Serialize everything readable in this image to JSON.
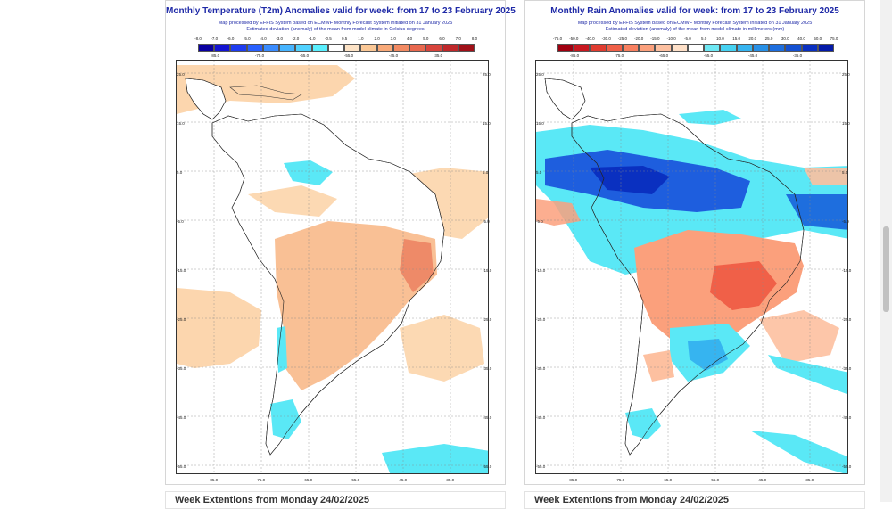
{
  "left_panel": {
    "title": "Monthly Temperature (T2m) Anomalies valid for week: from 17 to 23 February 2025",
    "subtitle1": "Map processed by EFFIS System based on ECMWF Monthly Forecast System initiated on 31 January 2025",
    "subtitle2": "Estimated deviation (anomaly) of the mean from model climate in Celsius degrees",
    "legend_ticks": [
      "-8.0",
      "-7.0",
      "-6.0",
      "-5.0",
      "-4.0",
      "-3.0",
      "-2.0",
      "-1.0",
      "-0.5",
      "0.5",
      "1.0",
      "2.0",
      "3.0",
      "4.0",
      "5.0",
      "6.0",
      "7.0",
      "8.0"
    ],
    "legend_colors": [
      "#0a00a0",
      "#1414d2",
      "#1e3cf0",
      "#2860ff",
      "#3a8cff",
      "#46b4ff",
      "#50d2ff",
      "#5af0ff",
      "#ffffff",
      "#fde3c6",
      "#fbc896",
      "#f8a978",
      "#f28a62",
      "#e8684e",
      "#d8443c",
      "#c0282a",
      "#a01018"
    ]
  },
  "right_panel": {
    "title": "Monthly Rain Anomalies valid for week: from 17 to 23 February 2025",
    "subtitle1": "Map processed by EFFIS System based on ECMWF Monthly Forecast System initiated on 31 January 2025",
    "subtitle2": "Estimated deviation (anomaly) of the mean from model climate in millimeters (mm)",
    "legend_ticks": [
      "-75.0",
      "-50.0",
      "-40.0",
      "-30.0",
      "-25.0",
      "-20.0",
      "-15.0",
      "-10.0",
      "-5.0",
      "5.0",
      "10.0",
      "15.0",
      "20.0",
      "25.0",
      "30.0",
      "40.0",
      "50.0",
      "75.0"
    ],
    "legend_colors": [
      "#a00010",
      "#c81820",
      "#e03c30",
      "#f06048",
      "#f88060",
      "#fba07c",
      "#fdc0a0",
      "#fee0c8",
      "#ffffff",
      "#6ee8f4",
      "#46d2f2",
      "#36b4f0",
      "#2890e6",
      "#1e6ede",
      "#1450d2",
      "#0a30c0",
      "#041aa8"
    ]
  },
  "map_labels": {
    "legend_lons": [
      "-85.0",
      "-75.0",
      "-65.0",
      "-55.0",
      "-45.0",
      "-35.0"
    ],
    "lats": [
      "25.0",
      "15.0",
      "5.0",
      "-5.0",
      "-15.0",
      "-25.0",
      "-35.0",
      "-45.0",
      "-55.0"
    ],
    "lons": [
      "-85.0",
      "-75.0",
      "-65.0",
      "-55.0",
      "-45.0",
      "-35.0"
    ]
  },
  "bottom_cards": {
    "left": "Week Extentions from Monday 24/02/2025",
    "right": "Week Extentions from Monday 24/02/2025"
  }
}
